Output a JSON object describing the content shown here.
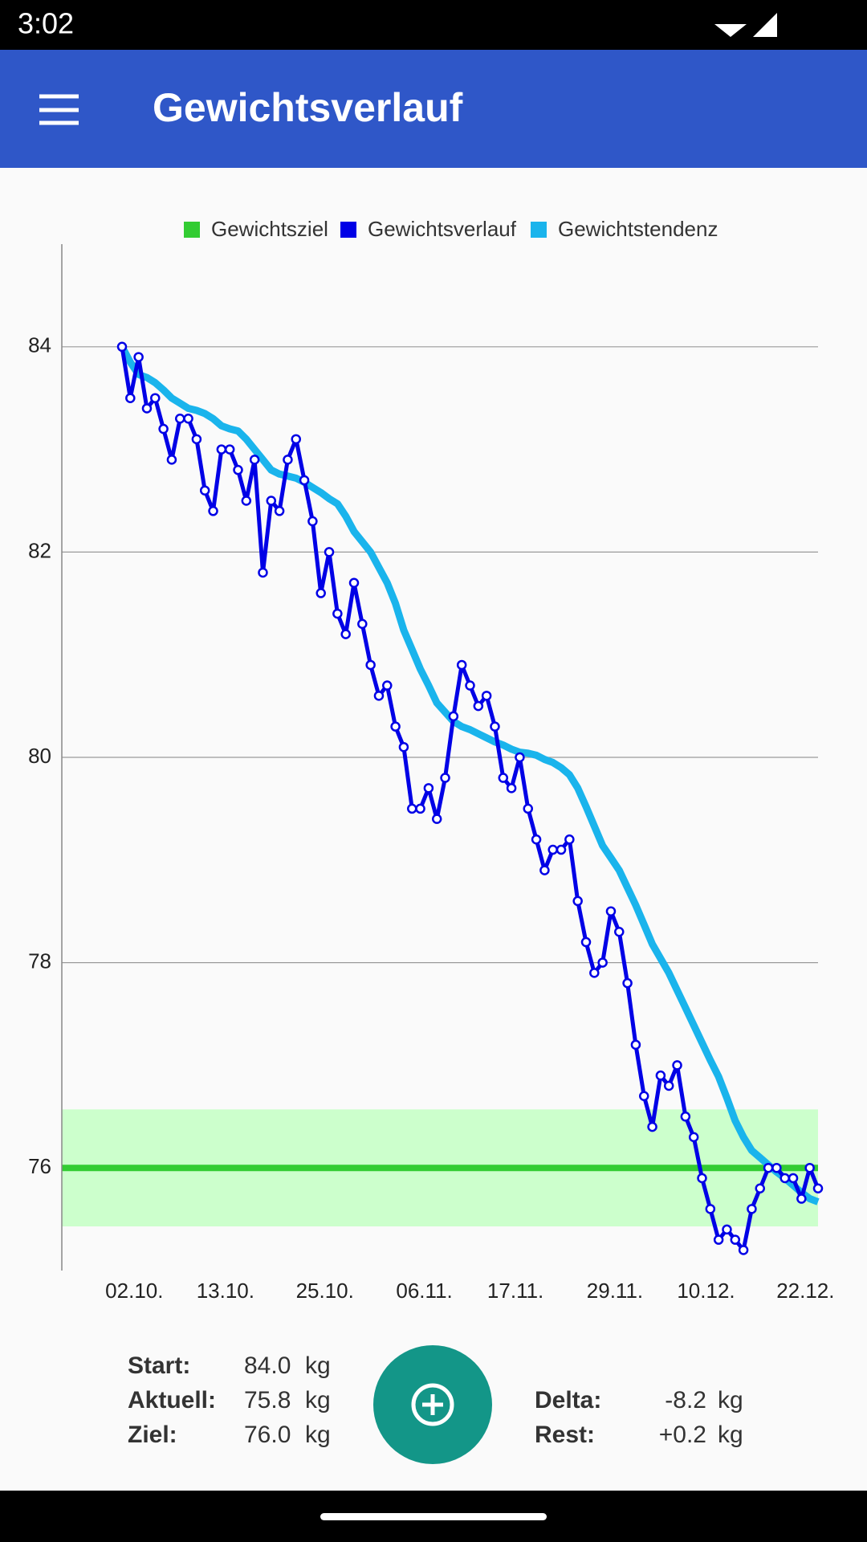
{
  "status_bar": {
    "time": "3:02"
  },
  "app_bar": {
    "title": "Gewichtsverlauf"
  },
  "chart_data": {
    "type": "line",
    "x": [
      "01.10.",
      "02.10.",
      "03.10.",
      "04.10.",
      "05.10.",
      "06.10.",
      "07.10.",
      "08.10.",
      "09.10.",
      "10.10.",
      "11.10.",
      "12.10.",
      "13.10.",
      "14.10.",
      "15.10.",
      "16.10.",
      "17.10.",
      "18.10.",
      "19.10.",
      "20.10.",
      "21.10.",
      "22.10.",
      "23.10.",
      "24.10.",
      "25.10.",
      "26.10.",
      "27.10.",
      "28.10.",
      "29.10.",
      "30.10.",
      "31.10.",
      "01.11.",
      "02.11.",
      "03.11.",
      "04.11.",
      "05.11.",
      "06.11.",
      "07.11.",
      "08.11.",
      "09.11.",
      "10.11.",
      "11.11.",
      "12.11.",
      "13.11.",
      "14.11.",
      "15.11.",
      "16.11.",
      "17.11.",
      "18.11.",
      "19.11.",
      "20.11.",
      "21.11.",
      "22.11.",
      "23.11.",
      "24.11.",
      "25.11.",
      "26.11.",
      "27.11.",
      "28.11.",
      "29.11.",
      "30.11.",
      "01.12.",
      "02.12.",
      "03.12.",
      "04.12.",
      "05.12.",
      "06.12.",
      "07.12.",
      "08.12.",
      "09.12.",
      "10.12.",
      "11.12.",
      "12.12.",
      "13.12.",
      "14.12.",
      "15.12.",
      "16.12.",
      "17.12.",
      "18.12.",
      "19.12.",
      "20.12.",
      "21.12.",
      "22.12.",
      "23.12.",
      "24.12."
    ],
    "xticks": [
      "02.10.",
      "13.10.",
      "25.10.",
      "06.11.",
      "17.11.",
      "29.11.",
      "10.12.",
      "22.12."
    ],
    "goal": {
      "name": "Gewichtsziel",
      "color": "#33cc33",
      "value": 76,
      "band": [
        75.43,
        76.57
      ],
      "band_color": "#ccffcc"
    },
    "series": [
      {
        "name": "Gewichtsverlauf",
        "color": "#0000e6",
        "markers": true,
        "values": [
          84.0,
          83.5,
          83.9,
          83.4,
          83.5,
          83.2,
          82.9,
          83.3,
          83.3,
          83.1,
          82.6,
          82.4,
          83.0,
          83.0,
          82.8,
          82.5,
          82.9,
          81.8,
          82.5,
          82.4,
          82.9,
          83.1,
          82.7,
          82.3,
          81.6,
          82.0,
          81.4,
          81.2,
          81.7,
          81.3,
          80.9,
          80.6,
          80.7,
          80.3,
          80.1,
          79.5,
          79.5,
          79.7,
          79.4,
          79.8,
          80.4,
          80.9,
          80.7,
          80.5,
          80.6,
          80.3,
          79.8,
          79.7,
          80.0,
          79.5,
          79.2,
          78.9,
          79.1,
          79.1,
          79.2,
          78.6,
          78.2,
          77.9,
          78.0,
          78.5,
          78.3,
          77.8,
          77.2,
          76.7,
          76.4,
          76.9,
          76.8,
          77.0,
          76.5,
          76.3,
          75.9,
          75.6,
          75.3,
          75.4,
          75.3,
          75.2,
          75.6,
          75.8,
          76.0,
          76.0,
          75.9,
          75.9,
          75.7,
          76.0,
          75.8
        ]
      },
      {
        "name": "Gewichtstendenz",
        "color": "#1ab4ec",
        "markers": false,
        "values": [
          84.0,
          83.85,
          83.73,
          83.7,
          83.65,
          83.58,
          83.5,
          83.45,
          83.4,
          83.38,
          83.35,
          83.3,
          83.23,
          83.2,
          83.18,
          83.1,
          83.0,
          82.9,
          82.8,
          82.76,
          82.74,
          82.72,
          82.68,
          82.63,
          82.58,
          82.52,
          82.47,
          82.35,
          82.2,
          82.1,
          82.0,
          81.85,
          81.7,
          81.5,
          81.24,
          81.05,
          80.86,
          80.7,
          80.53,
          80.44,
          80.35,
          80.3,
          80.27,
          80.23,
          80.19,
          80.15,
          80.12,
          80.08,
          80.05,
          80.04,
          80.02,
          79.98,
          79.95,
          79.9,
          79.83,
          79.7,
          79.52,
          79.33,
          79.14,
          79.02,
          78.9,
          78.73,
          78.56,
          78.37,
          78.18,
          78.04,
          77.9,
          77.73,
          77.56,
          77.39,
          77.22,
          77.05,
          76.89,
          76.68,
          76.46,
          76.3,
          76.17,
          76.1,
          76.03,
          75.96,
          75.9,
          75.83,
          75.76,
          75.7,
          75.67
        ]
      }
    ],
    "ylim": [
      75,
      85
    ],
    "yticks": [
      76,
      78,
      80,
      82,
      84
    ],
    "grid": true
  },
  "stats": {
    "left": [
      {
        "label": "Start:",
        "value": "84.0",
        "unit": "kg"
      },
      {
        "label": "Aktuell:",
        "value": "75.8",
        "unit": "kg"
      },
      {
        "label": "Ziel:",
        "value": "76.0",
        "unit": "kg"
      }
    ],
    "right": [
      {
        "label": "Delta:",
        "value": "-8.2",
        "unit": "kg"
      },
      {
        "label": "Rest:",
        "value": "+0.2",
        "unit": "kg"
      }
    ]
  }
}
